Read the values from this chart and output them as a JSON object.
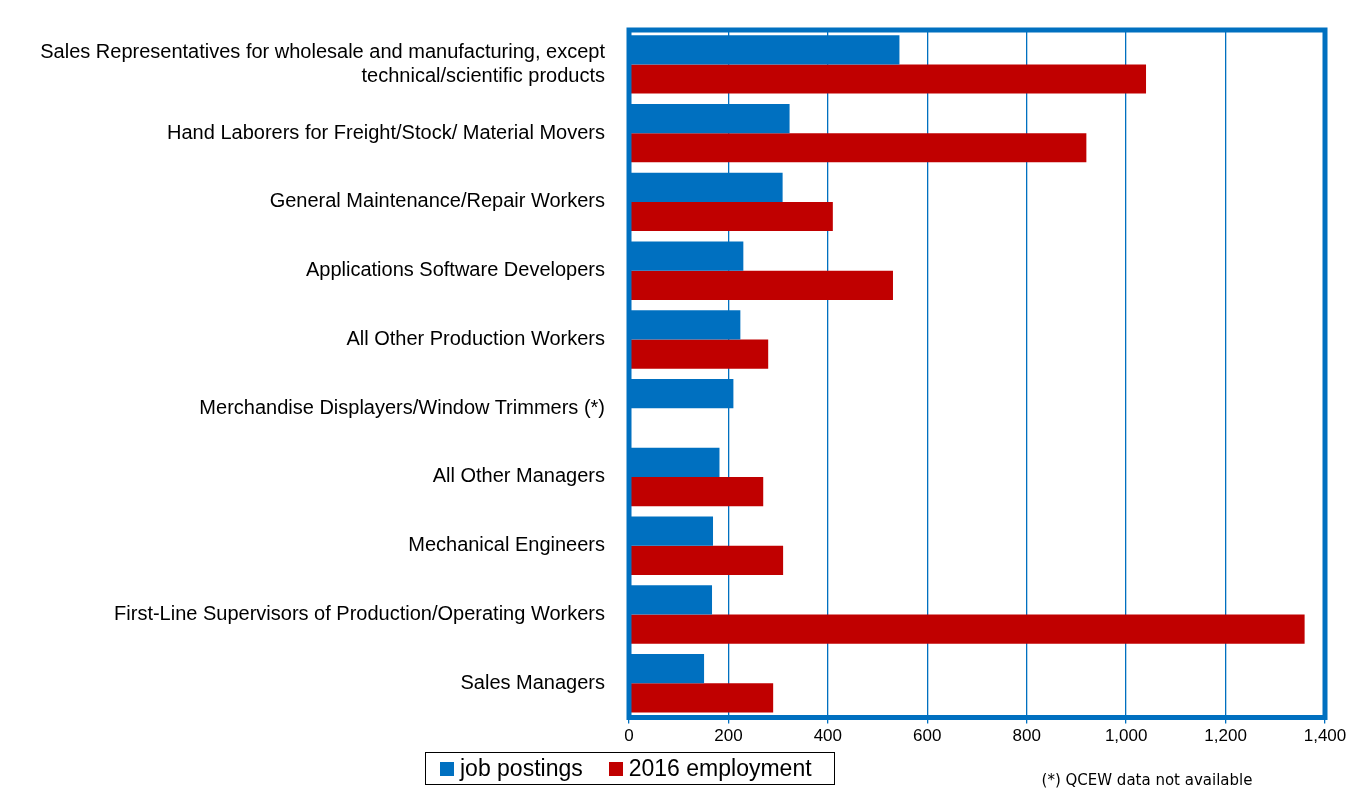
{
  "chart_data": {
    "type": "bar",
    "orientation": "horizontal",
    "categories": [
      "Sales Representatives for wholesale and manufacturing, except technical/scientific products",
      "Hand Laborers for Freight/Stock/ Material Movers",
      "General Maintenance/Repair Workers",
      "Applications Software Developers",
      "All Other Production Workers",
      "Merchandise Displayers/Window Trimmers (*)",
      "All Other Managers",
      "Mechanical Engineers",
      "First-Line Supervisors of Production/Operating Workers",
      "Sales Managers"
    ],
    "series": [
      {
        "name": "job postings",
        "color": "#0070c0",
        "values": [
          544,
          323,
          309,
          230,
          224,
          210,
          182,
          169,
          167,
          151
        ]
      },
      {
        "name": "2016 employment",
        "color": "#c00000",
        "values": [
          1040,
          920,
          410,
          531,
          280,
          null,
          270,
          310,
          1359,
          290
        ]
      }
    ],
    "xlim": [
      0,
      1400
    ],
    "xticks": [
      0,
      200,
      400,
      600,
      800,
      {
        "value": 1000,
        "label": "1,000"
      },
      {
        "value": 1200,
        "label": "1,200"
      },
      {
        "value": 1400,
        "label": "1,400"
      }
    ],
    "grid": "x",
    "legend": "bottom",
    "annotations": [
      "(*) QCEW data not available"
    ]
  }
}
